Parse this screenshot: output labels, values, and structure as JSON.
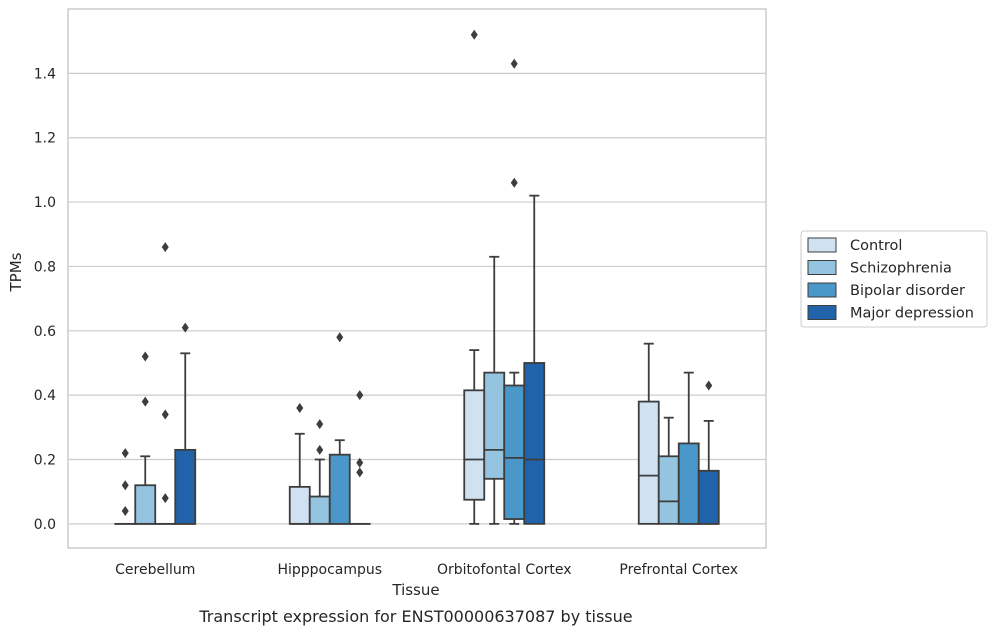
{
  "chart_data": {
    "type": "box",
    "caption": "Transcript expression for ENST00000637087 by tissue",
    "xlabel": "Tissue",
    "ylabel": "TPMs",
    "ylim": [
      -0.075,
      1.6
    ],
    "yticks": [
      0.0,
      0.2,
      0.4,
      0.6,
      0.8,
      1.0,
      1.2,
      1.4
    ],
    "ytick_labels": [
      "0.0",
      "0.2",
      "0.4",
      "0.6",
      "0.8",
      "1.0",
      "1.2",
      "1.4"
    ],
    "grid": "horizontal",
    "legend_position": "right",
    "categories": [
      "Cerebellum",
      "Hipppocampus",
      "Orbitofontal Cortex",
      "Prefrontal Cortex"
    ],
    "series": [
      {
        "name": "Control",
        "color": "#d0e1f2",
        "boxes": [
          {
            "q1": 0.0,
            "median": 0.0,
            "q3": 0.0,
            "whislo": 0.0,
            "whishi": 0.0,
            "fliers": [
              0.04,
              0.12,
              0.22
            ]
          },
          {
            "q1": 0.0,
            "median": 0.0,
            "q3": 0.115,
            "whislo": 0.0,
            "whishi": 0.28,
            "fliers": [
              0.36
            ]
          },
          {
            "q1": 0.075,
            "median": 0.2,
            "q3": 0.415,
            "whislo": 0.0,
            "whishi": 0.54,
            "fliers": [
              1.52
            ]
          },
          {
            "q1": 0.0,
            "median": 0.15,
            "q3": 0.38,
            "whislo": 0.0,
            "whishi": 0.56,
            "fliers": []
          }
        ]
      },
      {
        "name": "Schizophrenia",
        "color": "#94c4df",
        "boxes": [
          {
            "q1": 0.0,
            "median": 0.0,
            "q3": 0.12,
            "whislo": 0.0,
            "whishi": 0.21,
            "fliers": [
              0.38,
              0.52
            ]
          },
          {
            "q1": 0.0,
            "median": 0.0,
            "q3": 0.085,
            "whislo": 0.0,
            "whishi": 0.2,
            "fliers": [
              0.23,
              0.31
            ]
          },
          {
            "q1": 0.14,
            "median": 0.23,
            "q3": 0.47,
            "whislo": 0.0,
            "whishi": 0.83,
            "fliers": []
          },
          {
            "q1": 0.0,
            "median": 0.07,
            "q3": 0.21,
            "whislo": 0.0,
            "whishi": 0.33,
            "fliers": []
          }
        ]
      },
      {
        "name": "Bipolar disorder",
        "color": "#4a98c9",
        "boxes": [
          {
            "q1": 0.0,
            "median": 0.0,
            "q3": 0.0,
            "whislo": 0.0,
            "whishi": 0.0,
            "fliers": [
              0.08,
              0.34,
              0.86
            ]
          },
          {
            "q1": 0.0,
            "median": 0.0,
            "q3": 0.215,
            "whislo": 0.0,
            "whishi": 0.26,
            "fliers": [
              0.58
            ]
          },
          {
            "q1": 0.015,
            "median": 0.205,
            "q3": 0.43,
            "whislo": 0.0,
            "whishi": 0.47,
            "fliers": [
              1.06,
              1.43
            ]
          },
          {
            "q1": 0.0,
            "median": 0.0,
            "q3": 0.25,
            "whislo": 0.0,
            "whishi": 0.47,
            "fliers": []
          }
        ]
      },
      {
        "name": "Major depression",
        "color": "#2163aa",
        "boxes": [
          {
            "q1": 0.0,
            "median": 0.0,
            "q3": 0.23,
            "whislo": 0.0,
            "whishi": 0.53,
            "fliers": [
              0.61
            ]
          },
          {
            "q1": 0.0,
            "median": 0.0,
            "q3": 0.0,
            "whislo": 0.0,
            "whishi": 0.0,
            "fliers": [
              0.16,
              0.19,
              0.4
            ]
          },
          {
            "q1": 0.0,
            "median": 0.2,
            "q3": 0.5,
            "whislo": 0.0,
            "whishi": 1.02,
            "fliers": []
          },
          {
            "q1": 0.0,
            "median": 0.0,
            "q3": 0.165,
            "whislo": 0.0,
            "whishi": 0.32,
            "fliers": [
              0.43
            ]
          }
        ]
      }
    ]
  }
}
